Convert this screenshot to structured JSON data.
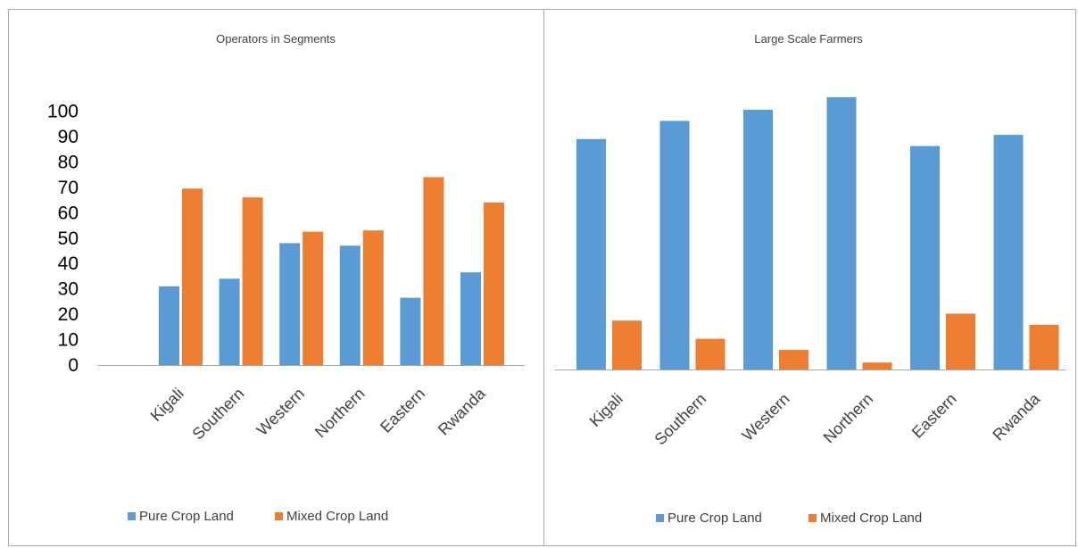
{
  "chart_data": [
    {
      "type": "bar",
      "title": "Operators in Segments",
      "categories": [
        "Kigali",
        "Southern",
        "Western",
        "Northern",
        "Eastern",
        "Rwanda"
      ],
      "series": [
        {
          "name": "Pure Crop Land",
          "color": "#5b9bd5",
          "values": [
            31,
            34,
            48,
            47,
            26.5,
            36.5
          ]
        },
        {
          "name": "Mixed Crop Land",
          "color": "#ed7d31",
          "values": [
            69.5,
            66,
            52.5,
            53,
            74,
            64
          ]
        }
      ],
      "yticks": [
        "0",
        "10",
        "20",
        "30",
        "40",
        "50",
        "60",
        "70",
        "80",
        "90",
        "100"
      ],
      "ylim": [
        0,
        100
      ],
      "legend": "bottom",
      "grid": false
    },
    {
      "type": "bar",
      "title": "Large Scale Farmers",
      "categories": [
        "Kigali",
        "Southern",
        "Western",
        "Northern",
        "Eastern",
        "Rwanda"
      ],
      "series": [
        {
          "name": "Pure Crop Land",
          "color": "#5b9bd5",
          "values": [
            82.5,
            89,
            93,
            97.5,
            80,
            84
          ]
        },
        {
          "name": "Mixed Crop Land",
          "color": "#ed7d31",
          "values": [
            17.5,
            11,
            7,
            2.5,
            20,
            16
          ]
        }
      ],
      "ylim": [
        0,
        100
      ],
      "legend": "bottom",
      "grid": false
    }
  ]
}
